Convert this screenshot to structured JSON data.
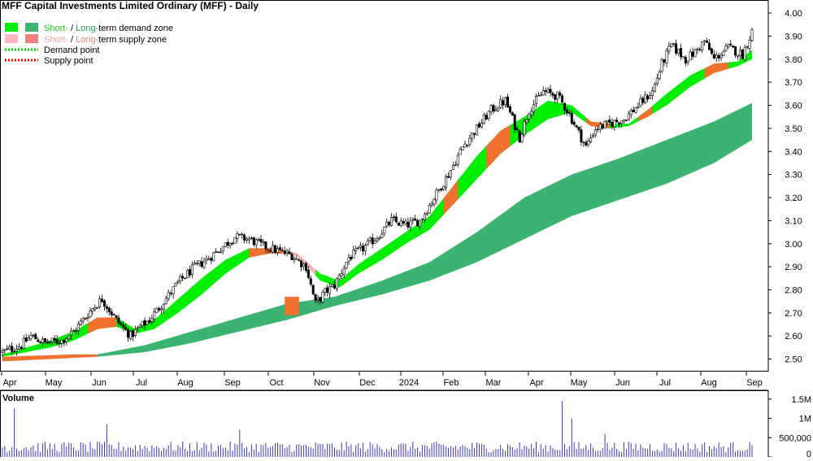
{
  "chart_data": {
    "type": "candlestick",
    "title": "MFF Capital Investments Limited Ordinary (MFF) - Daily",
    "legend": [
      {
        "parts": [
          {
            "text": "Short-",
            "color": "#1fd01f"
          },
          {
            "text": " / ",
            "color": "#000000"
          },
          {
            "text": "Long-",
            "color": "#2a9d5c"
          },
          {
            "text": "term demand zone",
            "color": "#000000"
          }
        ],
        "swatches": [
          "#00ee00",
          "#3cb371"
        ],
        "style": "box"
      },
      {
        "parts": [
          {
            "text": "Short-",
            "color": "#f4a7a7"
          },
          {
            "text": " / ",
            "color": "#000000"
          },
          {
            "text": "Long-",
            "color": "#f08080"
          },
          {
            "text": "term supply zone",
            "color": "#000000"
          }
        ],
        "swatches": [
          "#ffb6c1",
          "#f08080"
        ],
        "style": "box"
      },
      {
        "parts": [
          {
            "text": "Demand point",
            "color": "#000000"
          }
        ],
        "swatches": [
          "#00cc00"
        ],
        "style": "dotted"
      },
      {
        "parts": [
          {
            "text": "Supply point",
            "color": "#000000"
          }
        ],
        "swatches": [
          "#ee0000"
        ],
        "style": "dotted"
      }
    ],
    "price_axis": {
      "min": 2.4,
      "max": 4.0,
      "ticks": [
        "2.50",
        "2.60",
        "2.70",
        "2.80",
        "2.90",
        "3.00",
        "3.10",
        "3.20",
        "3.30",
        "3.40",
        "3.50",
        "3.60",
        "3.70",
        "3.80",
        "3.90",
        "4.00"
      ]
    },
    "x_axis": {
      "labels": [
        "Apr",
        "May",
        "Jun",
        "Jul",
        "Aug",
        "Sep",
        "Oct",
        "Nov",
        "Dec",
        "2024",
        "Feb",
        "Mar",
        "Apr",
        "May",
        "Jun",
        "Jul",
        "Aug",
        "Sep"
      ]
    },
    "price_path": [
      [
        0,
        2.53
      ],
      [
        8,
        2.56
      ],
      [
        12,
        2.6
      ],
      [
        18,
        2.57
      ],
      [
        25,
        2.58
      ],
      [
        30,
        2.62
      ],
      [
        38,
        2.72
      ],
      [
        42,
        2.76
      ],
      [
        48,
        2.67
      ],
      [
        54,
        2.6
      ],
      [
        58,
        2.64
      ],
      [
        62,
        2.67
      ],
      [
        68,
        2.75
      ],
      [
        74,
        2.83
      ],
      [
        80,
        2.89
      ],
      [
        86,
        2.93
      ],
      [
        92,
        2.98
      ],
      [
        98,
        3.03
      ],
      [
        104,
        3.02
      ],
      [
        110,
        2.99
      ],
      [
        116,
        2.97
      ],
      [
        122,
        2.95
      ],
      [
        128,
        2.9
      ],
      [
        132,
        2.74
      ],
      [
        136,
        2.79
      ],
      [
        140,
        2.82
      ],
      [
        146,
        2.94
      ],
      [
        152,
        2.98
      ],
      [
        158,
        3.03
      ],
      [
        164,
        3.1
      ],
      [
        170,
        3.08
      ],
      [
        176,
        3.1
      ],
      [
        182,
        3.2
      ],
      [
        188,
        3.3
      ],
      [
        194,
        3.42
      ],
      [
        200,
        3.5
      ],
      [
        206,
        3.58
      ],
      [
        212,
        3.62
      ],
      [
        218,
        3.46
      ],
      [
        222,
        3.58
      ],
      [
        228,
        3.66
      ],
      [
        234,
        3.64
      ],
      [
        238,
        3.58
      ],
      [
        242,
        3.5
      ],
      [
        246,
        3.42
      ],
      [
        250,
        3.5
      ],
      [
        256,
        3.52
      ],
      [
        262,
        3.54
      ],
      [
        268,
        3.6
      ],
      [
        274,
        3.66
      ],
      [
        278,
        3.78
      ],
      [
        282,
        3.86
      ],
      [
        288,
        3.8
      ],
      [
        292,
        3.83
      ],
      [
        296,
        3.88
      ],
      [
        300,
        3.8
      ],
      [
        306,
        3.85
      ],
      [
        312,
        3.82
      ],
      [
        316,
        3.92
      ]
    ],
    "short_term_zone": {
      "upper": [
        [
          0,
          2.52
        ],
        [
          10,
          2.55
        ],
        [
          20,
          2.58
        ],
        [
          30,
          2.62
        ],
        [
          40,
          2.68
        ],
        [
          48,
          2.68
        ],
        [
          56,
          2.63
        ],
        [
          64,
          2.67
        ],
        [
          74,
          2.76
        ],
        [
          84,
          2.85
        ],
        [
          94,
          2.93
        ],
        [
          104,
          2.98
        ],
        [
          114,
          2.98
        ],
        [
          124,
          2.96
        ],
        [
          134,
          2.87
        ],
        [
          142,
          2.84
        ],
        [
          150,
          2.91
        ],
        [
          160,
          2.98
        ],
        [
          170,
          3.05
        ],
        [
          180,
          3.12
        ],
        [
          190,
          3.25
        ],
        [
          200,
          3.38
        ],
        [
          210,
          3.49
        ],
        [
          220,
          3.55
        ],
        [
          230,
          3.62
        ],
        [
          240,
          3.6
        ],
        [
          248,
          3.53
        ],
        [
          256,
          3.52
        ],
        [
          264,
          3.52
        ],
        [
          272,
          3.58
        ],
        [
          280,
          3.65
        ],
        [
          290,
          3.73
        ],
        [
          300,
          3.78
        ],
        [
          310,
          3.79
        ],
        [
          316,
          3.84
        ]
      ],
      "lower": [
        [
          0,
          2.51
        ],
        [
          10,
          2.53
        ],
        [
          20,
          2.55
        ],
        [
          30,
          2.58
        ],
        [
          40,
          2.63
        ],
        [
          48,
          2.64
        ],
        [
          56,
          2.61
        ],
        [
          64,
          2.63
        ],
        [
          74,
          2.7
        ],
        [
          84,
          2.78
        ],
        [
          94,
          2.87
        ],
        [
          104,
          2.94
        ],
        [
          114,
          2.96
        ],
        [
          124,
          2.95
        ],
        [
          134,
          2.84
        ],
        [
          142,
          2.81
        ],
        [
          150,
          2.87
        ],
        [
          160,
          2.93
        ],
        [
          170,
          3.0
        ],
        [
          180,
          3.06
        ],
        [
          190,
          3.17
        ],
        [
          200,
          3.28
        ],
        [
          210,
          3.39
        ],
        [
          220,
          3.47
        ],
        [
          230,
          3.54
        ],
        [
          240,
          3.57
        ],
        [
          248,
          3.51
        ],
        [
          256,
          3.5
        ],
        [
          264,
          3.51
        ],
        [
          272,
          3.55
        ],
        [
          280,
          3.6
        ],
        [
          290,
          3.68
        ],
        [
          300,
          3.74
        ],
        [
          310,
          3.77
        ],
        [
          316,
          3.8
        ]
      ]
    },
    "long_term_zone": {
      "upper": [
        [
          40,
          2.52
        ],
        [
          60,
          2.56
        ],
        [
          80,
          2.62
        ],
        [
          100,
          2.68
        ],
        [
          120,
          2.74
        ],
        [
          140,
          2.77
        ],
        [
          160,
          2.84
        ],
        [
          180,
          2.92
        ],
        [
          200,
          3.05
        ],
        [
          220,
          3.2
        ],
        [
          240,
          3.3
        ],
        [
          260,
          3.37
        ],
        [
          280,
          3.45
        ],
        [
          300,
          3.53
        ],
        [
          316,
          3.61
        ]
      ],
      "lower": [
        [
          40,
          2.51
        ],
        [
          60,
          2.53
        ],
        [
          80,
          2.57
        ],
        [
          100,
          2.62
        ],
        [
          120,
          2.67
        ],
        [
          140,
          2.73
        ],
        [
          160,
          2.78
        ],
        [
          180,
          2.84
        ],
        [
          200,
          2.92
        ],
        [
          220,
          3.02
        ],
        [
          240,
          3.12
        ],
        [
          260,
          3.19
        ],
        [
          280,
          3.26
        ],
        [
          300,
          3.35
        ],
        [
          316,
          3.45
        ]
      ]
    },
    "volume_panel": {
      "label": "Volume",
      "ticks": [
        "1.5M",
        "1M",
        "500,000",
        "0"
      ],
      "max": 1600000
    },
    "volume_spikes": [
      [
        5,
        1250000
      ],
      [
        44,
        850000
      ],
      [
        100,
        700000
      ],
      [
        236,
        1450000
      ],
      [
        240,
        1000000
      ],
      [
        254,
        600000
      ]
    ]
  }
}
